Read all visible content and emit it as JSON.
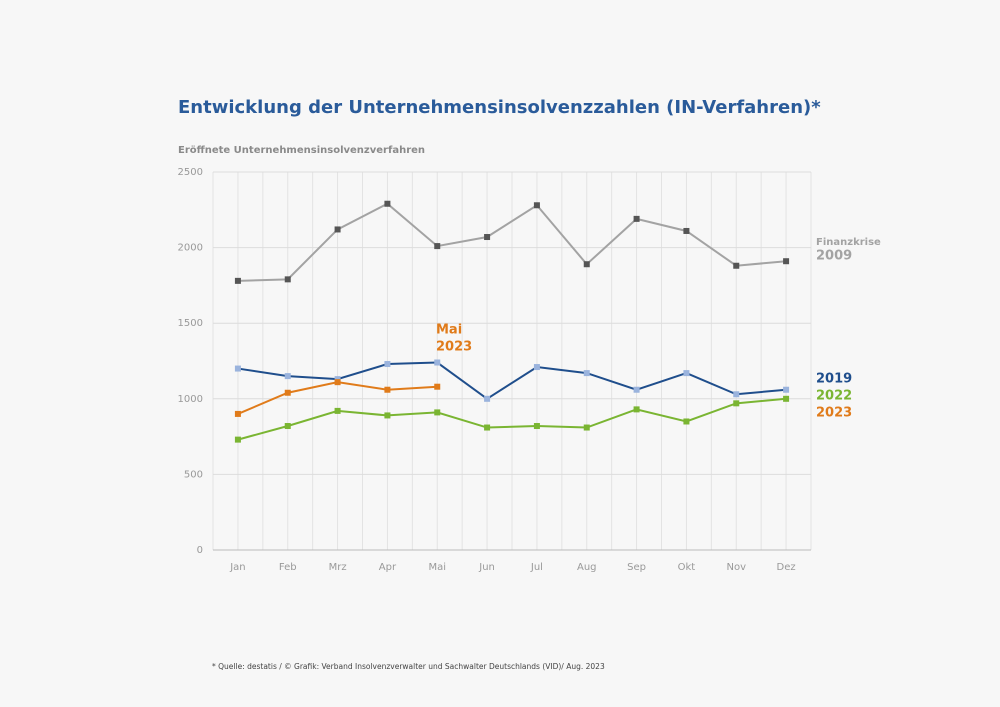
{
  "chart_data": {
    "type": "line",
    "title": "Entwicklung der Unternehmensinsolvenzzahlen (IN-Verfahren)*",
    "y_label": "Eröffnete Unternehmensinsolvenzverfahren",
    "categories": [
      "Jan",
      "Feb",
      "Mrz",
      "Apr",
      "Mai",
      "Jun",
      "Jul",
      "Aug",
      "Sep",
      "Okt",
      "Nov",
      "Dez"
    ],
    "series": [
      {
        "name": "2009",
        "color": "#a3a3a3",
        "marker_color": "#555555",
        "values": [
          1780,
          1790,
          2120,
          2290,
          2010,
          2070,
          2280,
          1890,
          2190,
          2110,
          1880,
          1910
        ]
      },
      {
        "name": "2019",
        "color": "#1f4e8c",
        "marker_color": "#9ab3dd",
        "values": [
          1200,
          1150,
          1130,
          1230,
          1240,
          1000,
          1210,
          1170,
          1060,
          1170,
          1030,
          1060
        ]
      },
      {
        "name": "2022",
        "color": "#7ab532",
        "marker_color": "#7ab532",
        "values": [
          730,
          820,
          920,
          890,
          910,
          810,
          820,
          810,
          930,
          850,
          970,
          1000
        ]
      },
      {
        "name": "2023",
        "color": "#e07b1a",
        "marker_color": "#e07b1a",
        "values": [
          900,
          1040,
          1110,
          1060,
          1080,
          null,
          null,
          null,
          null,
          null,
          null,
          null
        ]
      }
    ],
    "series_note": "Finanzkrise",
    "annotation": [
      "Mai",
      "2023"
    ],
    "footnote": "* Quelle: destatis / © Grafik: Verband Insolvenzverwalter und Sachwalter Deutschlands (VID)/ Aug. 2023",
    "ylim": [
      0,
      2500
    ],
    "yticks": [
      0,
      500,
      1000,
      1500,
      2000,
      2500
    ],
    "grid": true
  }
}
